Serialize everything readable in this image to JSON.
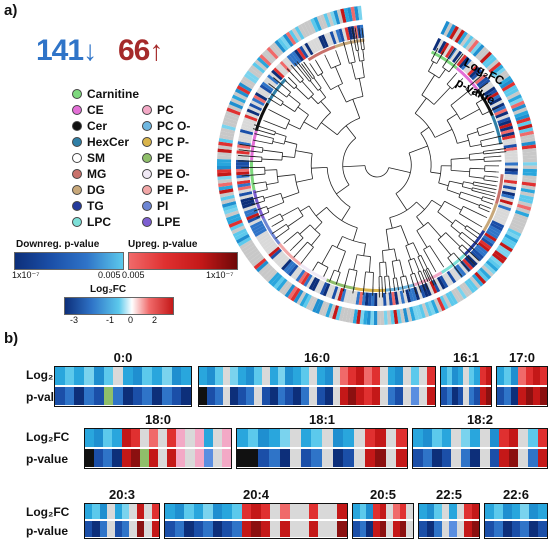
{
  "panel_a": {
    "label": "a)",
    "down_count": "141",
    "up_count": "66",
    "colors": {
      "down": "#2f74c8",
      "up": "#a52a2a"
    },
    "ring_labels": {
      "log2fc": "Log₂FC",
      "pvalue": "p-value"
    },
    "legend_left": [
      {
        "name": "Carnitine",
        "color": "#7dd87d"
      },
      {
        "name": "CE",
        "color": "#e36fd6"
      },
      {
        "name": "Cer",
        "color": "#111111"
      },
      {
        "name": "HexCer",
        "color": "#2f7fa6"
      },
      {
        "name": "SM",
        "color": "#ffffff"
      },
      {
        "name": "MG",
        "color": "#c8716b"
      },
      {
        "name": "DG",
        "color": "#c8a87a"
      },
      {
        "name": "TG",
        "color": "#243a9c"
      },
      {
        "name": "LPC",
        "color": "#7de0d8"
      }
    ],
    "legend_right": [
      {
        "name": "PC",
        "color": "#f3a9c6"
      },
      {
        "name": "PC O-",
        "color": "#6fb7e0"
      },
      {
        "name": "PC P-",
        "color": "#d9b44a"
      },
      {
        "name": "PE",
        "color": "#8fbf6a"
      },
      {
        "name": "PE O-",
        "color": "#f0e9f5"
      },
      {
        "name": "PE P-",
        "color": "#f2a7a7"
      },
      {
        "name": "PI",
        "color": "#6d86d4"
      },
      {
        "name": "LPE",
        "color": "#7d5fd1"
      }
    ],
    "colorbars": {
      "down_label": "Downreg. p-value",
      "up_label": "Upreg. p-value",
      "down_ticks": [
        "1x10⁻⁷",
        "0.005"
      ],
      "up_ticks": [
        "0.005",
        "1x10⁻⁷"
      ],
      "log2fc_label": "Log₂FC",
      "log2fc_ticks": [
        "-3",
        "-1",
        "0",
        "2"
      ]
    }
  },
  "panel_b": {
    "label": "b)",
    "row_labels": {
      "log2fc": "Log₂FC",
      "pvalue": "p-value"
    },
    "strips": [
      {
        "title": "0:0",
        "top": [
          "#29a6dd",
          "#5cc9ec",
          "#29a6dd",
          "#7ad3ee",
          "#1f8fd0",
          "#5cc9ec",
          "#d9d9d9",
          "#29a6dd",
          "#1f8fd0",
          "#5cc9ec",
          "#29a6dd",
          "#7ad3ee",
          "#1f8fd0",
          "#29a6dd"
        ],
        "bottom": [
          "#1b4fa8",
          "#2f74c8",
          "#0d2f7a",
          "#2f74c8",
          "#1b4fa8",
          "#8fbf6a",
          "#2f74c8",
          "#0d2f7a",
          "#1b4fa8",
          "#2f74c8",
          "#0d2f7a",
          "#2f74c8",
          "#1b4fa8",
          "#0d2f7a"
        ]
      },
      {
        "title": "16:0",
        "top": [
          "#29a6dd",
          "#1f8fd0",
          "#5cc9ec",
          "#d9d9d9",
          "#7ad3ee",
          "#29a6dd",
          "#1f8fd0",
          "#5cc9ec",
          "#d9d9d9",
          "#29a6dd",
          "#7ad3ee",
          "#1f8fd0",
          "#29a6dd",
          "#5cc9ec",
          "#d9d9d9",
          "#29a6dd",
          "#1f8fd0",
          "#d9d9d9",
          "#f06a6a",
          "#e03030",
          "#c41818",
          "#f06a6a",
          "#e03030",
          "#d9d9d9",
          "#29a6dd",
          "#1f8fd0",
          "#d9d9d9",
          "#5cc9ec",
          "#d9d9d9",
          "#e03030"
        ],
        "bottom": [
          "#111111",
          "#1b4fa8",
          "#2f74c8",
          "#d9d9d9",
          "#0d2f7a",
          "#1b4fa8",
          "#2f74c8",
          "#d9d9d9",
          "#1b4fa8",
          "#0d2f7a",
          "#2f74c8",
          "#1b4fa8",
          "#0d2f7a",
          "#2f74c8",
          "#d9d9d9",
          "#1b4fa8",
          "#0d2f7a",
          "#d9d9d9",
          "#c41818",
          "#8b1010",
          "#c41818",
          "#e03030",
          "#c41818",
          "#d9d9d9",
          "#2f74c8",
          "#1b4fa8",
          "#d9d9d9",
          "#5a8ee0",
          "#d9d9d9",
          "#c41818"
        ]
      },
      {
        "title": "16:1",
        "top": [
          "#29a6dd",
          "#5cc9ec",
          "#1f8fd0",
          "#29a6dd",
          "#d9d9d9",
          "#5cc9ec",
          "#29a6dd",
          "#e03030",
          "#c41818"
        ],
        "bottom": [
          "#1b4fa8",
          "#2f74c8",
          "#0d2f7a",
          "#1b4fa8",
          "#d9d9d9",
          "#2f74c8",
          "#1b4fa8",
          "#c41818",
          "#8b1010"
        ]
      },
      {
        "title": "17:0",
        "top": [
          "#29a6dd",
          "#5cc9ec",
          "#1f8fd0",
          "#f06a6a",
          "#e03030",
          "#c41818",
          "#e03030"
        ],
        "bottom": [
          "#1b4fa8",
          "#2f74c8",
          "#0d2f7a",
          "#c41818",
          "#8b1010",
          "#c41818",
          "#8b1010"
        ]
      },
      {
        "title": "18:0",
        "top": [
          "#29a6dd",
          "#1f8fd0",
          "#5cc9ec",
          "#29a6dd",
          "#c41818",
          "#e03030",
          "#d9d9d9",
          "#f06a6a",
          "#d9d9d9",
          "#e03030",
          "#f3a9c6",
          "#d9d9d9",
          "#f3a9c6",
          "#29a6dd",
          "#d9d9d9",
          "#f3a9c6"
        ],
        "bottom": [
          "#111111",
          "#1b4fa8",
          "#2f74c8",
          "#0d2f7a",
          "#c41818",
          "#8b1010",
          "#8fbf6a",
          "#c41818",
          "#d9d9d9",
          "#c41818",
          "#f3a9c6",
          "#d9d9d9",
          "#f3a9c6",
          "#5a8ee0",
          "#d9d9d9",
          "#f3a9c6"
        ]
      },
      {
        "title": "18:1",
        "top": [
          "#29a6dd",
          "#5cc9ec",
          "#1f8fd0",
          "#29a6dd",
          "#7ad3ee",
          "#d9d9d9",
          "#29a6dd",
          "#5cc9ec",
          "#d9d9d9",
          "#1f8fd0",
          "#29a6dd",
          "#d9d9d9",
          "#e03030",
          "#c41818",
          "#d9d9d9",
          "#e03030"
        ],
        "bottom": [
          "#111111",
          "#111111",
          "#1b4fa8",
          "#2f74c8",
          "#0d2f7a",
          "#d9d9d9",
          "#1b4fa8",
          "#2f74c8",
          "#d9d9d9",
          "#0d2f7a",
          "#1b4fa8",
          "#d9d9d9",
          "#c41818",
          "#8b1010",
          "#d9d9d9",
          "#c41818"
        ]
      },
      {
        "title": "18:2",
        "top": [
          "#29a6dd",
          "#1f8fd0",
          "#5cc9ec",
          "#29a6dd",
          "#d9d9d9",
          "#7ad3ee",
          "#29a6dd",
          "#d9d9d9",
          "#1f8fd0",
          "#e03030",
          "#c41818",
          "#d9d9d9",
          "#5cc9ec",
          "#e03030"
        ],
        "bottom": [
          "#1b4fa8",
          "#2f74c8",
          "#0d2f7a",
          "#1b4fa8",
          "#d9d9d9",
          "#2f74c8",
          "#0d2f7a",
          "#d9d9d9",
          "#1b4fa8",
          "#c41818",
          "#8b1010",
          "#d9d9d9",
          "#2f74c8",
          "#c41818"
        ]
      },
      {
        "title": "20:3",
        "top": [
          "#29a6dd",
          "#5cc9ec",
          "#1f8fd0",
          "#d9d9d9",
          "#29a6dd",
          "#7ad3ee",
          "#d9d9d9",
          "#c41818",
          "#d9d9d9",
          "#e03030"
        ],
        "bottom": [
          "#1b4fa8",
          "#0d2f7a",
          "#2f74c8",
          "#d9d9d9",
          "#1b4fa8",
          "#2f74c8",
          "#d9d9d9",
          "#8b1010",
          "#d9d9d9",
          "#c41818"
        ]
      },
      {
        "title": "20:4",
        "top": [
          "#29a6dd",
          "#1f8fd0",
          "#5cc9ec",
          "#29a6dd",
          "#7ad3ee",
          "#1f8fd0",
          "#29a6dd",
          "#5cc9ec",
          "#e03030",
          "#c41818",
          "#e03030",
          "#d9d9d9",
          "#f06a6a",
          "#d9d9d9",
          "#d9d9d9",
          "#e03030",
          "#d9d9d9",
          "#d9d9d9",
          "#c41818"
        ],
        "bottom": [
          "#1b4fa8",
          "#2f74c8",
          "#0d2f7a",
          "#1b4fa8",
          "#2f74c8",
          "#0d2f7a",
          "#1b4fa8",
          "#2f74c8",
          "#c41818",
          "#8b1010",
          "#c41818",
          "#d9d9d9",
          "#c41818",
          "#d9d9d9",
          "#d9d9d9",
          "#c41818",
          "#d9d9d9",
          "#d9d9d9",
          "#8b1010"
        ]
      },
      {
        "title": "20:5",
        "top": [
          "#29a6dd",
          "#5cc9ec",
          "#1f8fd0",
          "#e03030",
          "#c41818",
          "#d9d9d9",
          "#f06a6a",
          "#e03030",
          "#d9d9d9"
        ],
        "bottom": [
          "#1b4fa8",
          "#2f74c8",
          "#0d2f7a",
          "#c41818",
          "#8b1010",
          "#d9d9d9",
          "#c41818",
          "#8b1010",
          "#d9d9d9"
        ]
      },
      {
        "title": "22:5",
        "top": [
          "#29a6dd",
          "#1f8fd0",
          "#5cc9ec",
          "#d9d9d9",
          "#29a6dd",
          "#d9d9d9",
          "#e03030",
          "#c41818"
        ],
        "bottom": [
          "#1b4fa8",
          "#0d2f7a",
          "#2f74c8",
          "#d9d9d9",
          "#5a8ee0",
          "#d9d9d9",
          "#c41818",
          "#8b1010"
        ]
      },
      {
        "title": "22:6",
        "top": [
          "#29a6dd",
          "#5cc9ec",
          "#1f8fd0",
          "#29a6dd",
          "#7ad3ee",
          "#1f8fd0",
          "#29a6dd"
        ],
        "bottom": [
          "#1b4fa8",
          "#2f74c8",
          "#0d2f7a",
          "#1b4fa8",
          "#2f74c8",
          "#0d2f7a",
          "#1b4fa8"
        ]
      }
    ]
  }
}
